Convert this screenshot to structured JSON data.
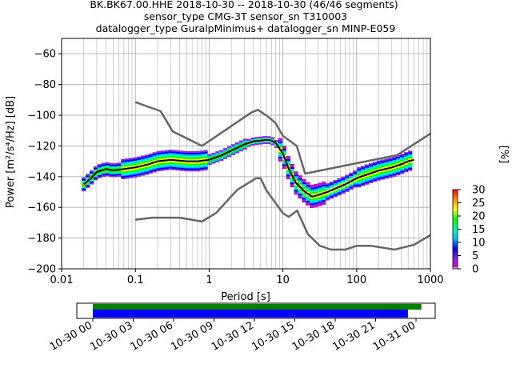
{
  "chart_data": {
    "type": "heatmap",
    "subtype": "probabilistic-power-spectral-density",
    "title_lines": [
      "BK.BK67.00.HHE   2018-10-30 -- 2018-10-30  (46/46 segments)",
      "sensor_type CMG-3T sensor_sn T310003",
      "datalogger_type GuralpMinimus+ datalogger_sn MINP-E059"
    ],
    "xlabel": "Period [s]",
    "ylabel": "Power [m²/s⁴/Hz] [dB]",
    "x_scale": "log",
    "xlim": [
      0.01,
      1000
    ],
    "ylim": [
      -200,
      -50
    ],
    "x_ticks": [
      {
        "value": 0.01,
        "label": "0.01"
      },
      {
        "value": 0.1,
        "label": "0.1"
      },
      {
        "value": 1,
        "label": "1"
      },
      {
        "value": 10,
        "label": "10"
      },
      {
        "value": 100,
        "label": "100"
      },
      {
        "value": 1000,
        "label": "1000"
      }
    ],
    "y_ticks": [
      {
        "value": -60,
        "label": "−60"
      },
      {
        "value": -80,
        "label": "−80"
      },
      {
        "value": -100,
        "label": "−100"
      },
      {
        "value": -120,
        "label": "−120"
      },
      {
        "value": -140,
        "label": "−140"
      },
      {
        "value": -160,
        "label": "−160"
      },
      {
        "value": -180,
        "label": "−180"
      },
      {
        "value": -200,
        "label": "−200"
      }
    ],
    "grid": true,
    "series": [
      {
        "role": "mode",
        "x": [
          0.02,
          0.025,
          0.03,
          0.04,
          0.05,
          0.07,
          0.1,
          0.15,
          0.2,
          0.3,
          0.5,
          0.7,
          1,
          1.5,
          2,
          3,
          4,
          5,
          6,
          7,
          8,
          10,
          12,
          15,
          20,
          25,
          30,
          40,
          50,
          70,
          100,
          150,
          200,
          300,
          400,
          500,
          600
        ],
        "y": [
          -145,
          -141,
          -137,
          -135,
          -136,
          -135,
          -134,
          -132,
          -130,
          -129,
          -130,
          -130,
          -129,
          -126,
          -123,
          -119,
          -117,
          -116.5,
          -116,
          -116.5,
          -118,
          -125,
          -135,
          -144,
          -150,
          -153,
          -152,
          -150,
          -148,
          -145,
          -141,
          -138,
          -136,
          -134,
          -132,
          -130,
          -129
        ]
      },
      {
        "role": "new-high-noise-model",
        "x": [
          0.1,
          0.22,
          0.32,
          0.8,
          3.8,
          4.6,
          6.3,
          7.9,
          10,
          15.4,
          20,
          354,
          1000
        ],
        "y": [
          -91.5,
          -97.4,
          -110.5,
          -120,
          -98,
          -96.5,
          -101,
          -105,
          -113.5,
          -120,
          -138,
          -126,
          -112
        ]
      },
      {
        "role": "new-low-noise-model",
        "x": [
          0.1,
          0.17,
          0.4,
          0.8,
          1.24,
          2.4,
          4.3,
          5,
          6,
          10,
          12,
          15.6,
          21.9,
          31.6,
          45,
          70,
          101,
          154,
          328,
          600,
          1000
        ],
        "y": [
          -168,
          -166.7,
          -166.7,
          -169.2,
          -163.7,
          -148.6,
          -141.1,
          -141.1,
          -149,
          -163.8,
          -166.2,
          -162.1,
          -177.5,
          -185,
          -187.5,
          -187.5,
          -185,
          -185,
          -187.5,
          -184.4,
          -178
        ]
      }
    ],
    "colorbar": {
      "label": "[%]",
      "range": [
        0,
        30
      ],
      "ticks": [
        {
          "value": 0,
          "label": "0"
        },
        {
          "value": 5,
          "label": "5"
        },
        {
          "value": 10,
          "label": "10"
        },
        {
          "value": 15,
          "label": "15"
        },
        {
          "value": 20,
          "label": "20"
        },
        {
          "value": 25,
          "label": "25"
        },
        {
          "value": 30,
          "label": "30"
        }
      ],
      "colors": [
        "#ffffff",
        "#cc00cc",
        "#8a2be2",
        "#0000ff",
        "#00bfff",
        "#00ffaa",
        "#00ff00",
        "#ffff00",
        "#ff8c00",
        "#ff0000"
      ]
    },
    "coverage": {
      "time_ticks": [
        "10-30 00",
        "10-30 03",
        "10-30 06",
        "10-30 09",
        "10-30 12",
        "10-30 15",
        "10-30 18",
        "10-30 21",
        "10-31 00"
      ],
      "data_coverage": {
        "start_hour": 0,
        "end_hour": 24.4,
        "color": "#008000"
      },
      "psd_coverage": {
        "start_hour": 0,
        "end_hour": 23.4,
        "color": "#0000ff"
      }
    }
  }
}
